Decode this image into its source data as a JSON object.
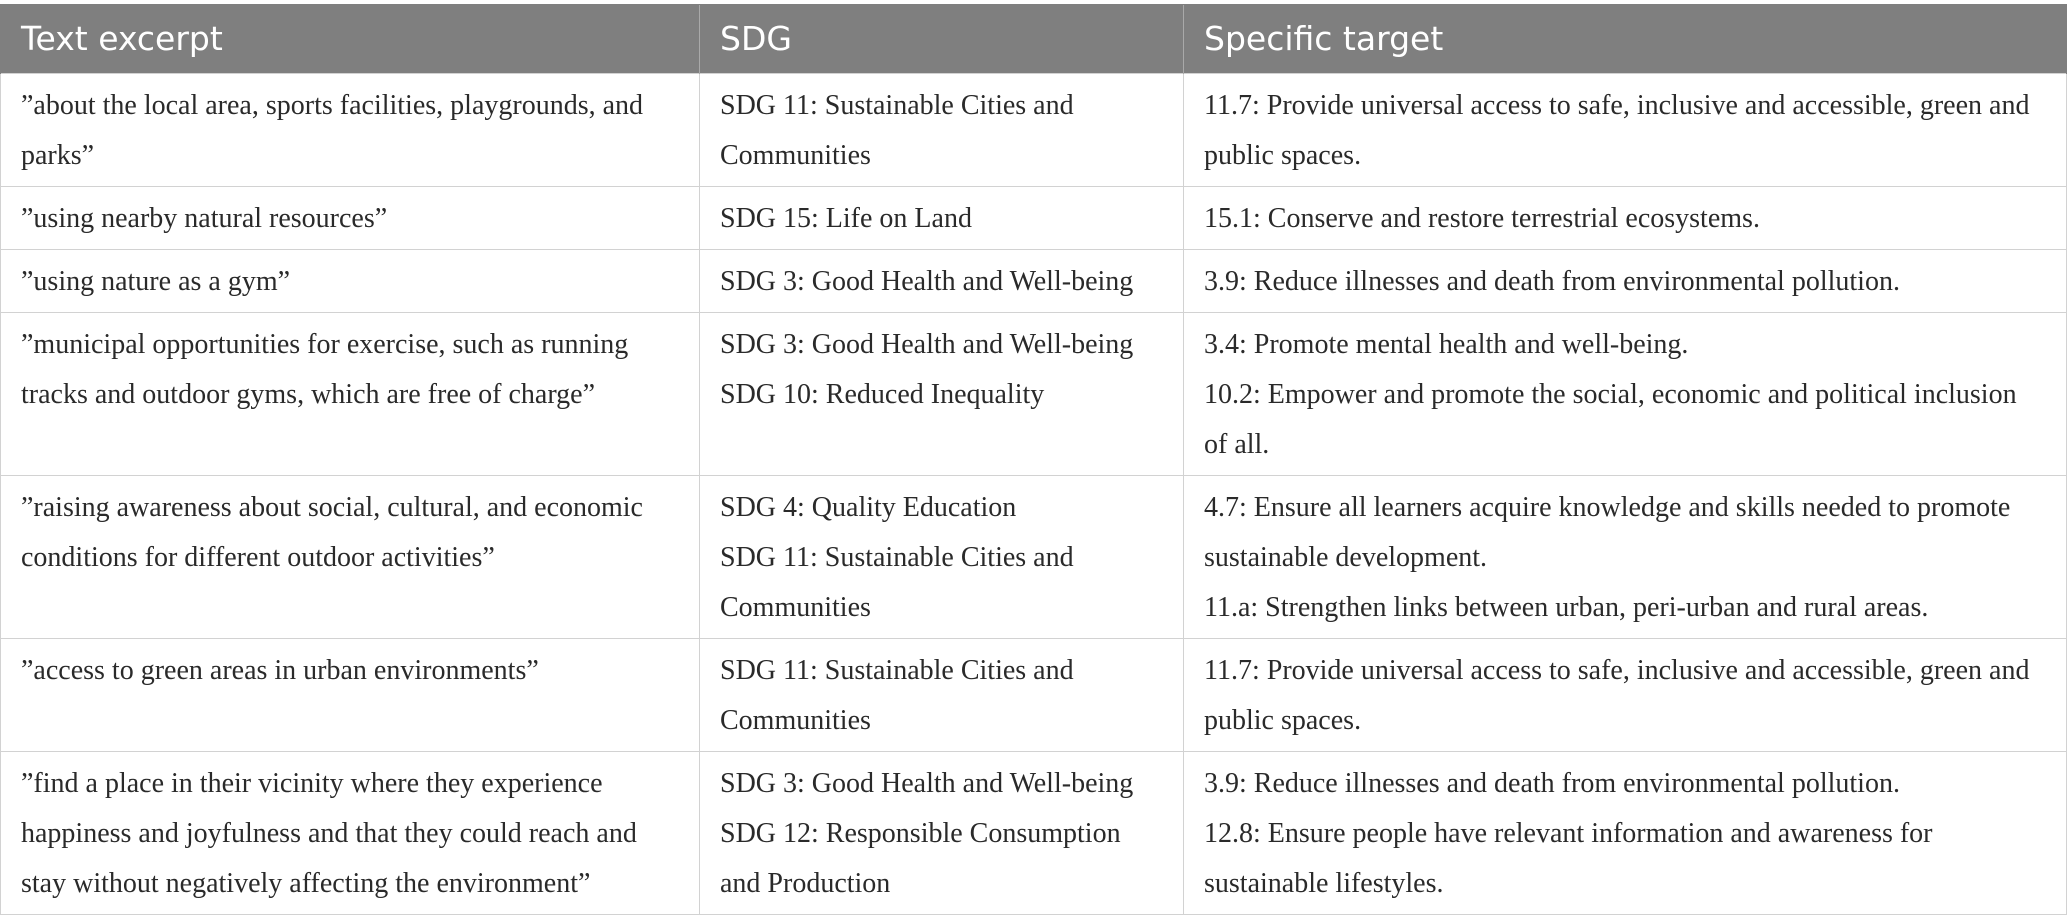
{
  "colors": {
    "header_bg": "#7f7f7f",
    "header_text": "#ffffff",
    "header_divider": "#a9a9a9",
    "grid": "#d2d2d2",
    "text": "#2a2a2a"
  },
  "table": {
    "headers": [
      "Text excerpt",
      "SDG",
      "Specific target"
    ],
    "rows": [
      {
        "excerpt": "”about the local area, sports facilities, playgrounds, and parks”",
        "sdg": [
          "SDG 11: Sustainable Cities and Communities"
        ],
        "targets": [
          "11.7: Provide universal access to safe, inclusive and accessible, green and public spaces."
        ]
      },
      {
        "excerpt": "”using nearby natural resources”",
        "sdg": [
          "SDG 15: Life on Land"
        ],
        "targets": [
          "15.1: Conserve and restore terrestrial ecosystems."
        ]
      },
      {
        "excerpt": "”using nature as a gym”",
        "sdg": [
          "SDG 3: Good Health and Well-being"
        ],
        "targets": [
          "3.9: Reduce illnesses and death from environmental pollution."
        ]
      },
      {
        "excerpt": "”municipal opportunities for exercise, such as running tracks and outdoor gyms, which are free of charge”",
        "sdg": [
          "SDG 3: Good Health and Well-being",
          "SDG 10: Reduced Inequality"
        ],
        "targets": [
          "3.4: Promote mental health and well-being.",
          "10.2: Empower and promote the social, economic and political inclusion of all."
        ]
      },
      {
        "excerpt": "”raising awareness about social, cultural, and economic conditions for different outdoor activities”",
        "sdg": [
          "SDG 4: Quality Education",
          "SDG 11: Sustainable Cities and Communities"
        ],
        "targets": [
          "4.7: Ensure all learners acquire knowledge and skills needed to promote sustainable development.",
          "11.a: Strengthen links between urban, peri-urban and rural areas."
        ]
      },
      {
        "excerpt": "”access to green areas in urban environments”",
        "sdg": [
          "SDG 11: Sustainable Cities and Communities"
        ],
        "targets": [
          "11.7: Provide universal access to safe, inclusive and accessible, green and public spaces."
        ]
      },
      {
        "excerpt": "”find a place in their vicinity where they experience happiness and joyfulness and that they could reach and stay without negatively affecting the environment”",
        "sdg": [
          "SDG 3: Good Health and Well-being",
          "SDG 12: Responsible Consumption and Production"
        ],
        "targets": [
          "3.9: Reduce illnesses and death from environmental pollution.",
          "12.8: Ensure people have relevant information and awareness for sustainable lifestyles."
        ]
      }
    ]
  }
}
